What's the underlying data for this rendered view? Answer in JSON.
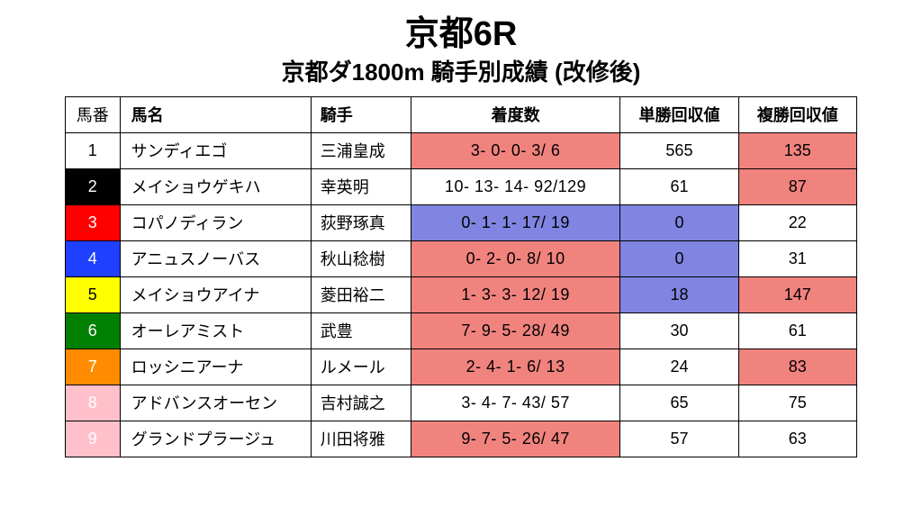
{
  "title": "京都6R",
  "subtitle": "京都ダ1800m 騎手別成績 (改修後)",
  "headers": {
    "num": "馬番",
    "name": "馬名",
    "jockey": "騎手",
    "record": "着度数",
    "win": "単勝回収値",
    "place": "複勝回収値"
  },
  "colors": {
    "highlight_red": "#f1837f",
    "highlight_blue": "#8085e2",
    "white": "#ffffff",
    "text_white": "#ffffff",
    "text_black": "#000000"
  },
  "num_colors": {
    "c_white": {
      "bg": "#ffffff",
      "fg": "#000000"
    },
    "c_black": {
      "bg": "#000000",
      "fg": "#ffffff"
    },
    "c_red": {
      "bg": "#ff0000",
      "fg": "#ffffff"
    },
    "c_blue": {
      "bg": "#2040ff",
      "fg": "#ffffff"
    },
    "c_yellow": {
      "bg": "#ffff00",
      "fg": "#000000"
    },
    "c_green": {
      "bg": "#008000",
      "fg": "#ffffff"
    },
    "c_orange": {
      "bg": "#ff8c00",
      "fg": "#ffffff"
    },
    "c_pink": {
      "bg": "#ffc0cb",
      "fg": "#ffffff"
    }
  },
  "rows": [
    {
      "num": "1",
      "num_color": "c_white",
      "name": "サンディエゴ",
      "jockey": "三浦皇成",
      "record": "3-  0-  0-  3/  6",
      "record_bg": "highlight_red",
      "win": "565",
      "win_bg": "white",
      "place": "135",
      "place_bg": "highlight_red"
    },
    {
      "num": "2",
      "num_color": "c_black",
      "name": "メイショウゲキハ",
      "jockey": "幸英明",
      "record": "10- 13- 14- 92/129",
      "record_bg": "white",
      "win": "61",
      "win_bg": "white",
      "place": "87",
      "place_bg": "highlight_red"
    },
    {
      "num": "3",
      "num_color": "c_red",
      "name": "コパノディラン",
      "jockey": "荻野琢真",
      "record": "0-  1-  1- 17/ 19",
      "record_bg": "highlight_blue",
      "win": "0",
      "win_bg": "highlight_blue",
      "place": "22",
      "place_bg": "white"
    },
    {
      "num": "4",
      "num_color": "c_blue",
      "name": "アニュスノーバス",
      "jockey": "秋山稔樹",
      "record": "0-  2-  0-  8/ 10",
      "record_bg": "highlight_red",
      "win": "0",
      "win_bg": "highlight_blue",
      "place": "31",
      "place_bg": "white"
    },
    {
      "num": "5",
      "num_color": "c_yellow",
      "name": "メイショウアイナ",
      "jockey": "菱田裕二",
      "record": "1-  3-  3- 12/ 19",
      "record_bg": "highlight_red",
      "win": "18",
      "win_bg": "highlight_blue",
      "place": "147",
      "place_bg": "highlight_red"
    },
    {
      "num": "6",
      "num_color": "c_green",
      "name": "オーレアミスト",
      "jockey": "武豊",
      "record": "7-  9-  5- 28/ 49",
      "record_bg": "highlight_red",
      "win": "30",
      "win_bg": "white",
      "place": "61",
      "place_bg": "white"
    },
    {
      "num": "7",
      "num_color": "c_orange",
      "name": "ロッシニアーナ",
      "jockey": "ルメール",
      "record": "2-  4-  1-  6/ 13",
      "record_bg": "highlight_red",
      "win": "24",
      "win_bg": "white",
      "place": "83",
      "place_bg": "highlight_red"
    },
    {
      "num": "8",
      "num_color": "c_pink",
      "name": "アドバンスオーセン",
      "jockey": "吉村誠之",
      "record": "3-  4-  7- 43/ 57",
      "record_bg": "white",
      "win": "65",
      "win_bg": "white",
      "place": "75",
      "place_bg": "white"
    },
    {
      "num": "9",
      "num_color": "c_pink",
      "name": "グランドプラージュ",
      "jockey": "川田将雅",
      "record": "9-  7-  5- 26/ 47",
      "record_bg": "highlight_red",
      "win": "57",
      "win_bg": "white",
      "place": "63",
      "place_bg": "white"
    }
  ]
}
